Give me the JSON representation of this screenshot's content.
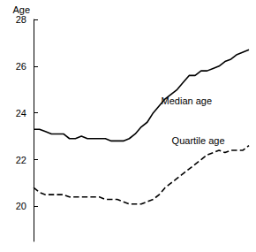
{
  "chart_data": {
    "type": "line",
    "y_label": "Age",
    "categories": [
      null,
      null,
      null,
      null,
      null,
      null,
      null,
      null,
      null,
      null,
      null,
      null,
      null,
      null,
      null,
      null,
      null,
      null,
      null,
      null,
      null,
      null,
      null,
      null,
      null,
      null,
      null,
      null,
      null,
      null,
      null,
      null,
      null,
      null,
      null,
      null,
      null
    ],
    "series": [
      {
        "name": "Median age",
        "color": "#000000",
        "line_style": "solid",
        "values": [
          23.3,
          23.3,
          23.2,
          23.1,
          23.1,
          23.1,
          22.9,
          22.9,
          23.0,
          22.9,
          22.9,
          22.9,
          22.9,
          22.8,
          22.8,
          22.8,
          22.9,
          23.1,
          23.4,
          23.6,
          24.0,
          24.3,
          24.6,
          24.8,
          25.0,
          25.3,
          25.6,
          25.6,
          25.8,
          25.8,
          25.9,
          26.0,
          26.2,
          26.3,
          26.5,
          26.6,
          26.7
        ]
      },
      {
        "name": "Quartile age",
        "color": "#000000",
        "line_style": "dashed",
        "values": [
          20.8,
          20.6,
          20.5,
          20.5,
          20.5,
          20.5,
          20.4,
          20.4,
          20.4,
          20.4,
          20.4,
          20.4,
          20.3,
          20.3,
          20.3,
          20.2,
          20.1,
          20.1,
          20.1,
          20.2,
          20.3,
          20.5,
          20.8,
          21.0,
          21.2,
          21.4,
          21.6,
          21.8,
          22.0,
          22.2,
          22.3,
          22.4,
          22.3,
          22.4,
          22.4,
          22.4,
          22.6
        ]
      }
    ],
    "ylim": [
      18.5,
      28
    ],
    "yticks": [
      20,
      22,
      24,
      26,
      28
    ],
    "grid": false,
    "tick_labels": "y"
  }
}
